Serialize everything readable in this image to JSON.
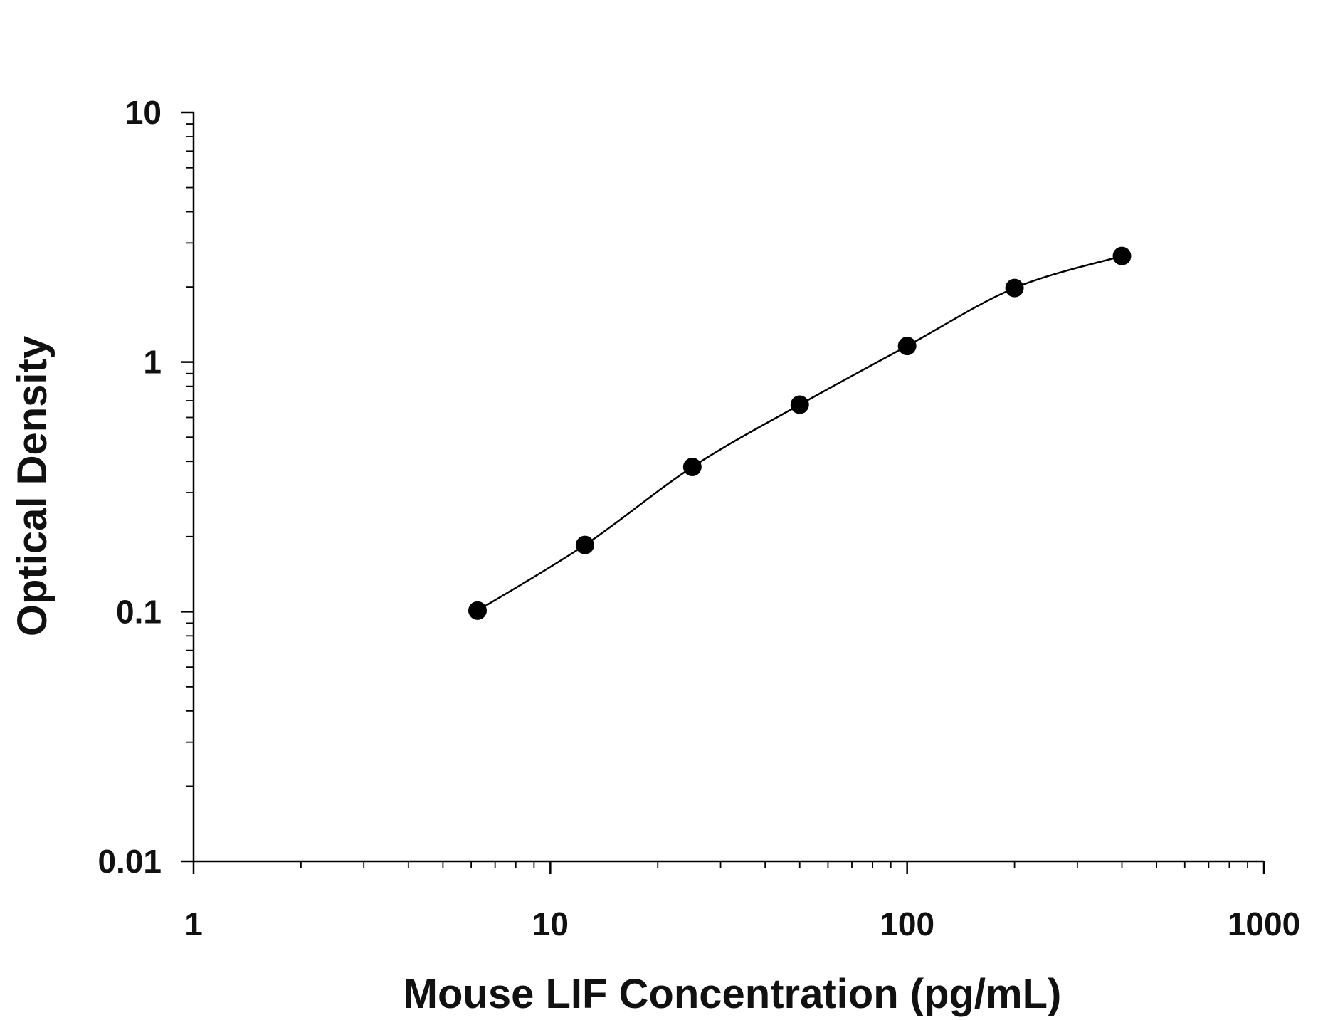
{
  "chart_data": {
    "type": "scatter",
    "title": "",
    "xlabel": "Mouse LIF Concentration (pg/mL)",
    "ylabel": "Optical Density",
    "x_scale": "log",
    "y_scale": "log",
    "xlim": [
      1,
      1000
    ],
    "ylim": [
      0.01,
      10
    ],
    "x_ticks": [
      1,
      10,
      100,
      1000
    ],
    "x_tick_labels": [
      "1",
      "10",
      "100",
      "1000"
    ],
    "y_ticks": [
      0.01,
      0.1,
      1,
      10
    ],
    "y_tick_labels": [
      "0.01",
      "0.1",
      "1",
      "10"
    ],
    "grid": false,
    "legend": "none",
    "series": [
      {
        "x": [
          6.25,
          12.5,
          25,
          50,
          100,
          200,
          400
        ],
        "y": [
          0.101,
          0.185,
          0.38,
          0.675,
          1.16,
          1.98,
          2.66
        ],
        "marker": "filled-circle",
        "fit_curve": true,
        "color": "#000000"
      }
    ]
  }
}
